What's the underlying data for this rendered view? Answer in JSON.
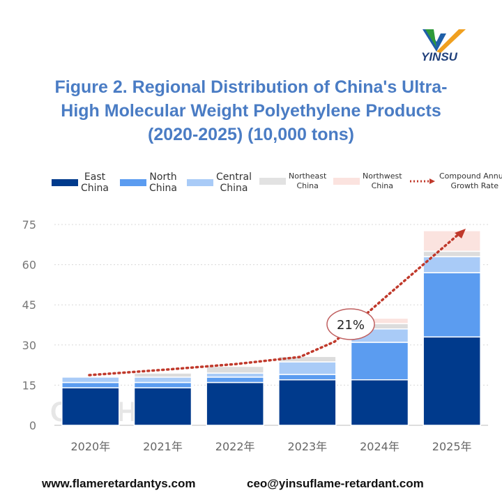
{
  "brand": {
    "logo_text": "YINSU"
  },
  "chart_data": {
    "type": "bar",
    "stacked": true,
    "title_lines": [
      "Figure 2. Regional Distribution of China's Ultra-",
      "High Molecular Weight Polyethylene Products",
      "(2020-2025) (10,000 tons)"
    ],
    "categories": [
      "2020年",
      "2021年",
      "2022年",
      "2023年",
      "2024年",
      "2025年"
    ],
    "ylim": [
      0,
      75
    ],
    "yticks": [
      "0",
      "15",
      "30",
      "45",
      "60",
      "75"
    ],
    "grid": true,
    "legend_position": "top",
    "series": [
      {
        "name": "East China",
        "color": "#003a8c",
        "values": [
          14,
          14,
          16,
          17,
          17,
          33
        ]
      },
      {
        "name": "North China",
        "color": "#5b9cf0",
        "values": [
          2,
          2,
          2,
          2,
          14,
          24
        ]
      },
      {
        "name": "Central China",
        "color": "#a9cbf7",
        "values": [
          2,
          2,
          1.5,
          4.7,
          5,
          6
        ]
      },
      {
        "name": "Northeast China",
        "color": "#dcdcdc",
        "values": [
          0,
          1.5,
          2.5,
          2,
          2,
          2
        ]
      },
      {
        "name": "Northwest China",
        "color": "#fbe3df",
        "values": [
          0,
          0,
          0,
          0,
          2,
          7.7
        ]
      }
    ],
    "trend": {
      "name": "Compound Annual Growth Rate",
      "color": "#c0392b",
      "annotation": "21%"
    },
    "watermark": "OILCHEM"
  },
  "legend_labels": [
    [
      "East",
      "China"
    ],
    [
      "North",
      "China"
    ],
    [
      "Central",
      "China"
    ],
    [
      "Northeast",
      "China"
    ],
    [
      "Northwest",
      "China"
    ],
    [
      "Compound Annual",
      "Growth Rate"
    ]
  ],
  "footer": {
    "website": "www.flameretardantys.com",
    "email": "ceo@yinsuflame-retardant.com"
  }
}
